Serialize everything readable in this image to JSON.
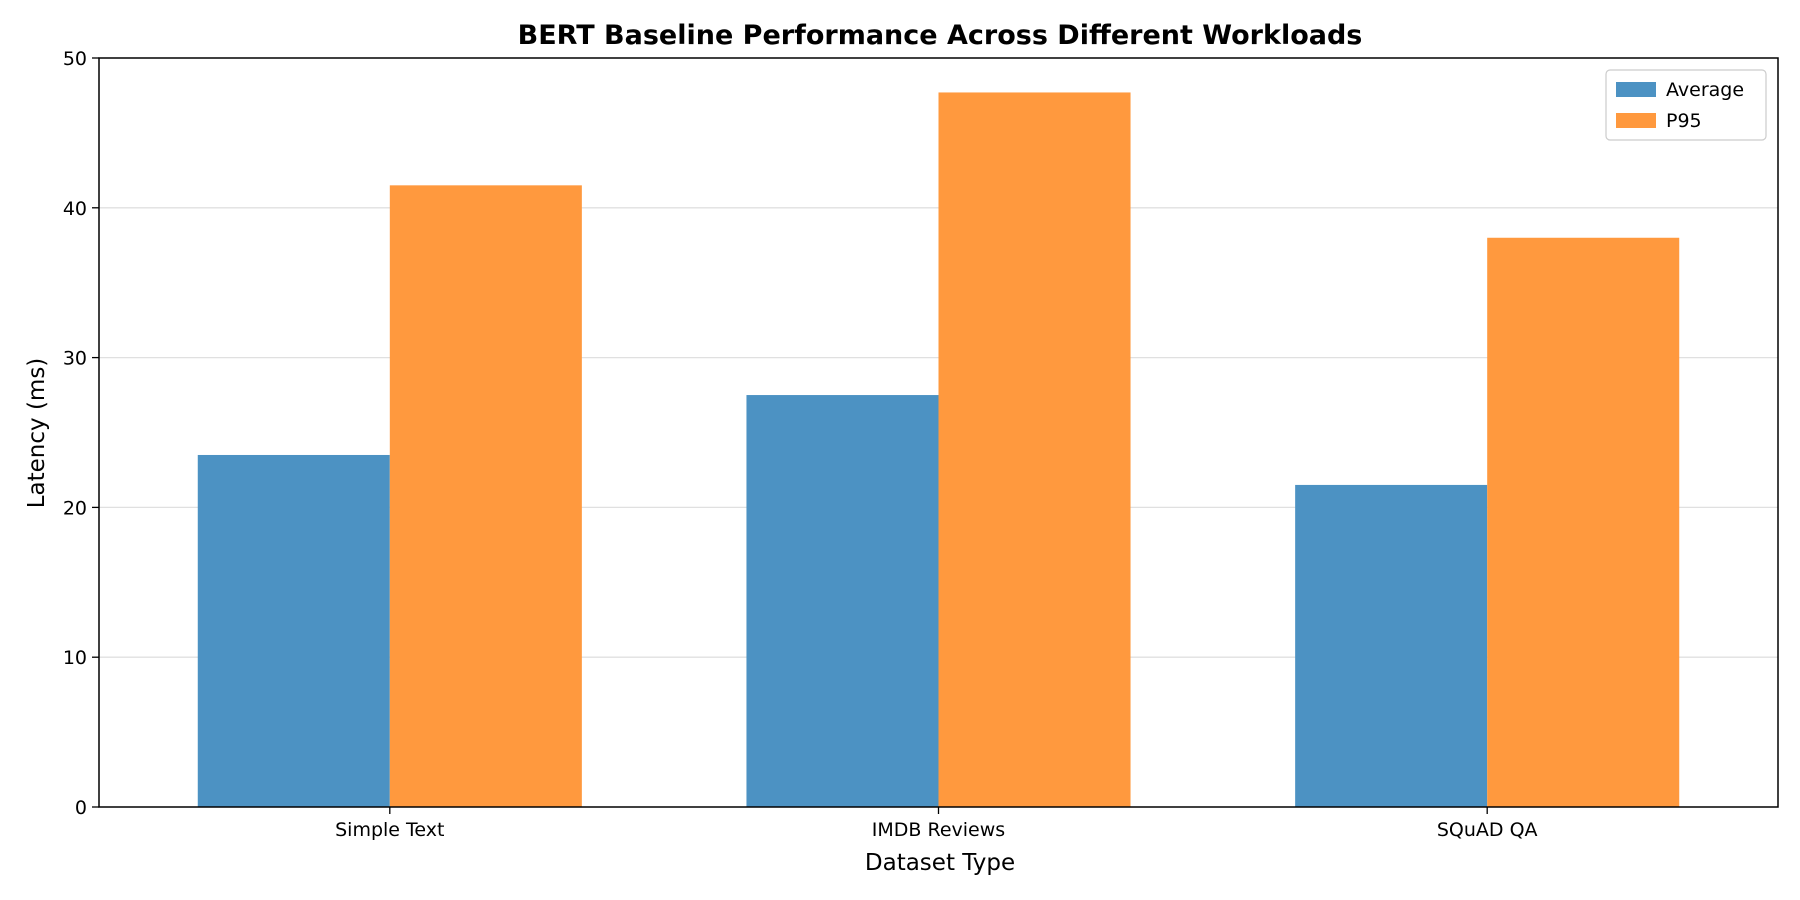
{
  "chart_data": {
    "type": "bar",
    "title": "BERT Baseline Performance Across Different Workloads",
    "xlabel": "Dataset Type",
    "ylabel": "Latency (ms)",
    "categories": [
      "Simple Text",
      "IMDB Reviews",
      "SQuAD QA"
    ],
    "series": [
      {
        "name": "Average",
        "values": [
          23.5,
          27.5,
          21.5
        ],
        "color": "#4c92c3"
      },
      {
        "name": "P95",
        "values": [
          41.5,
          47.7,
          38.0
        ],
        "color": "#ff993e"
      }
    ],
    "ylim": [
      0,
      50
    ],
    "yticks": [
      0,
      10,
      20,
      30,
      40,
      50
    ],
    "grid": "y",
    "legend_position": "top-right"
  }
}
